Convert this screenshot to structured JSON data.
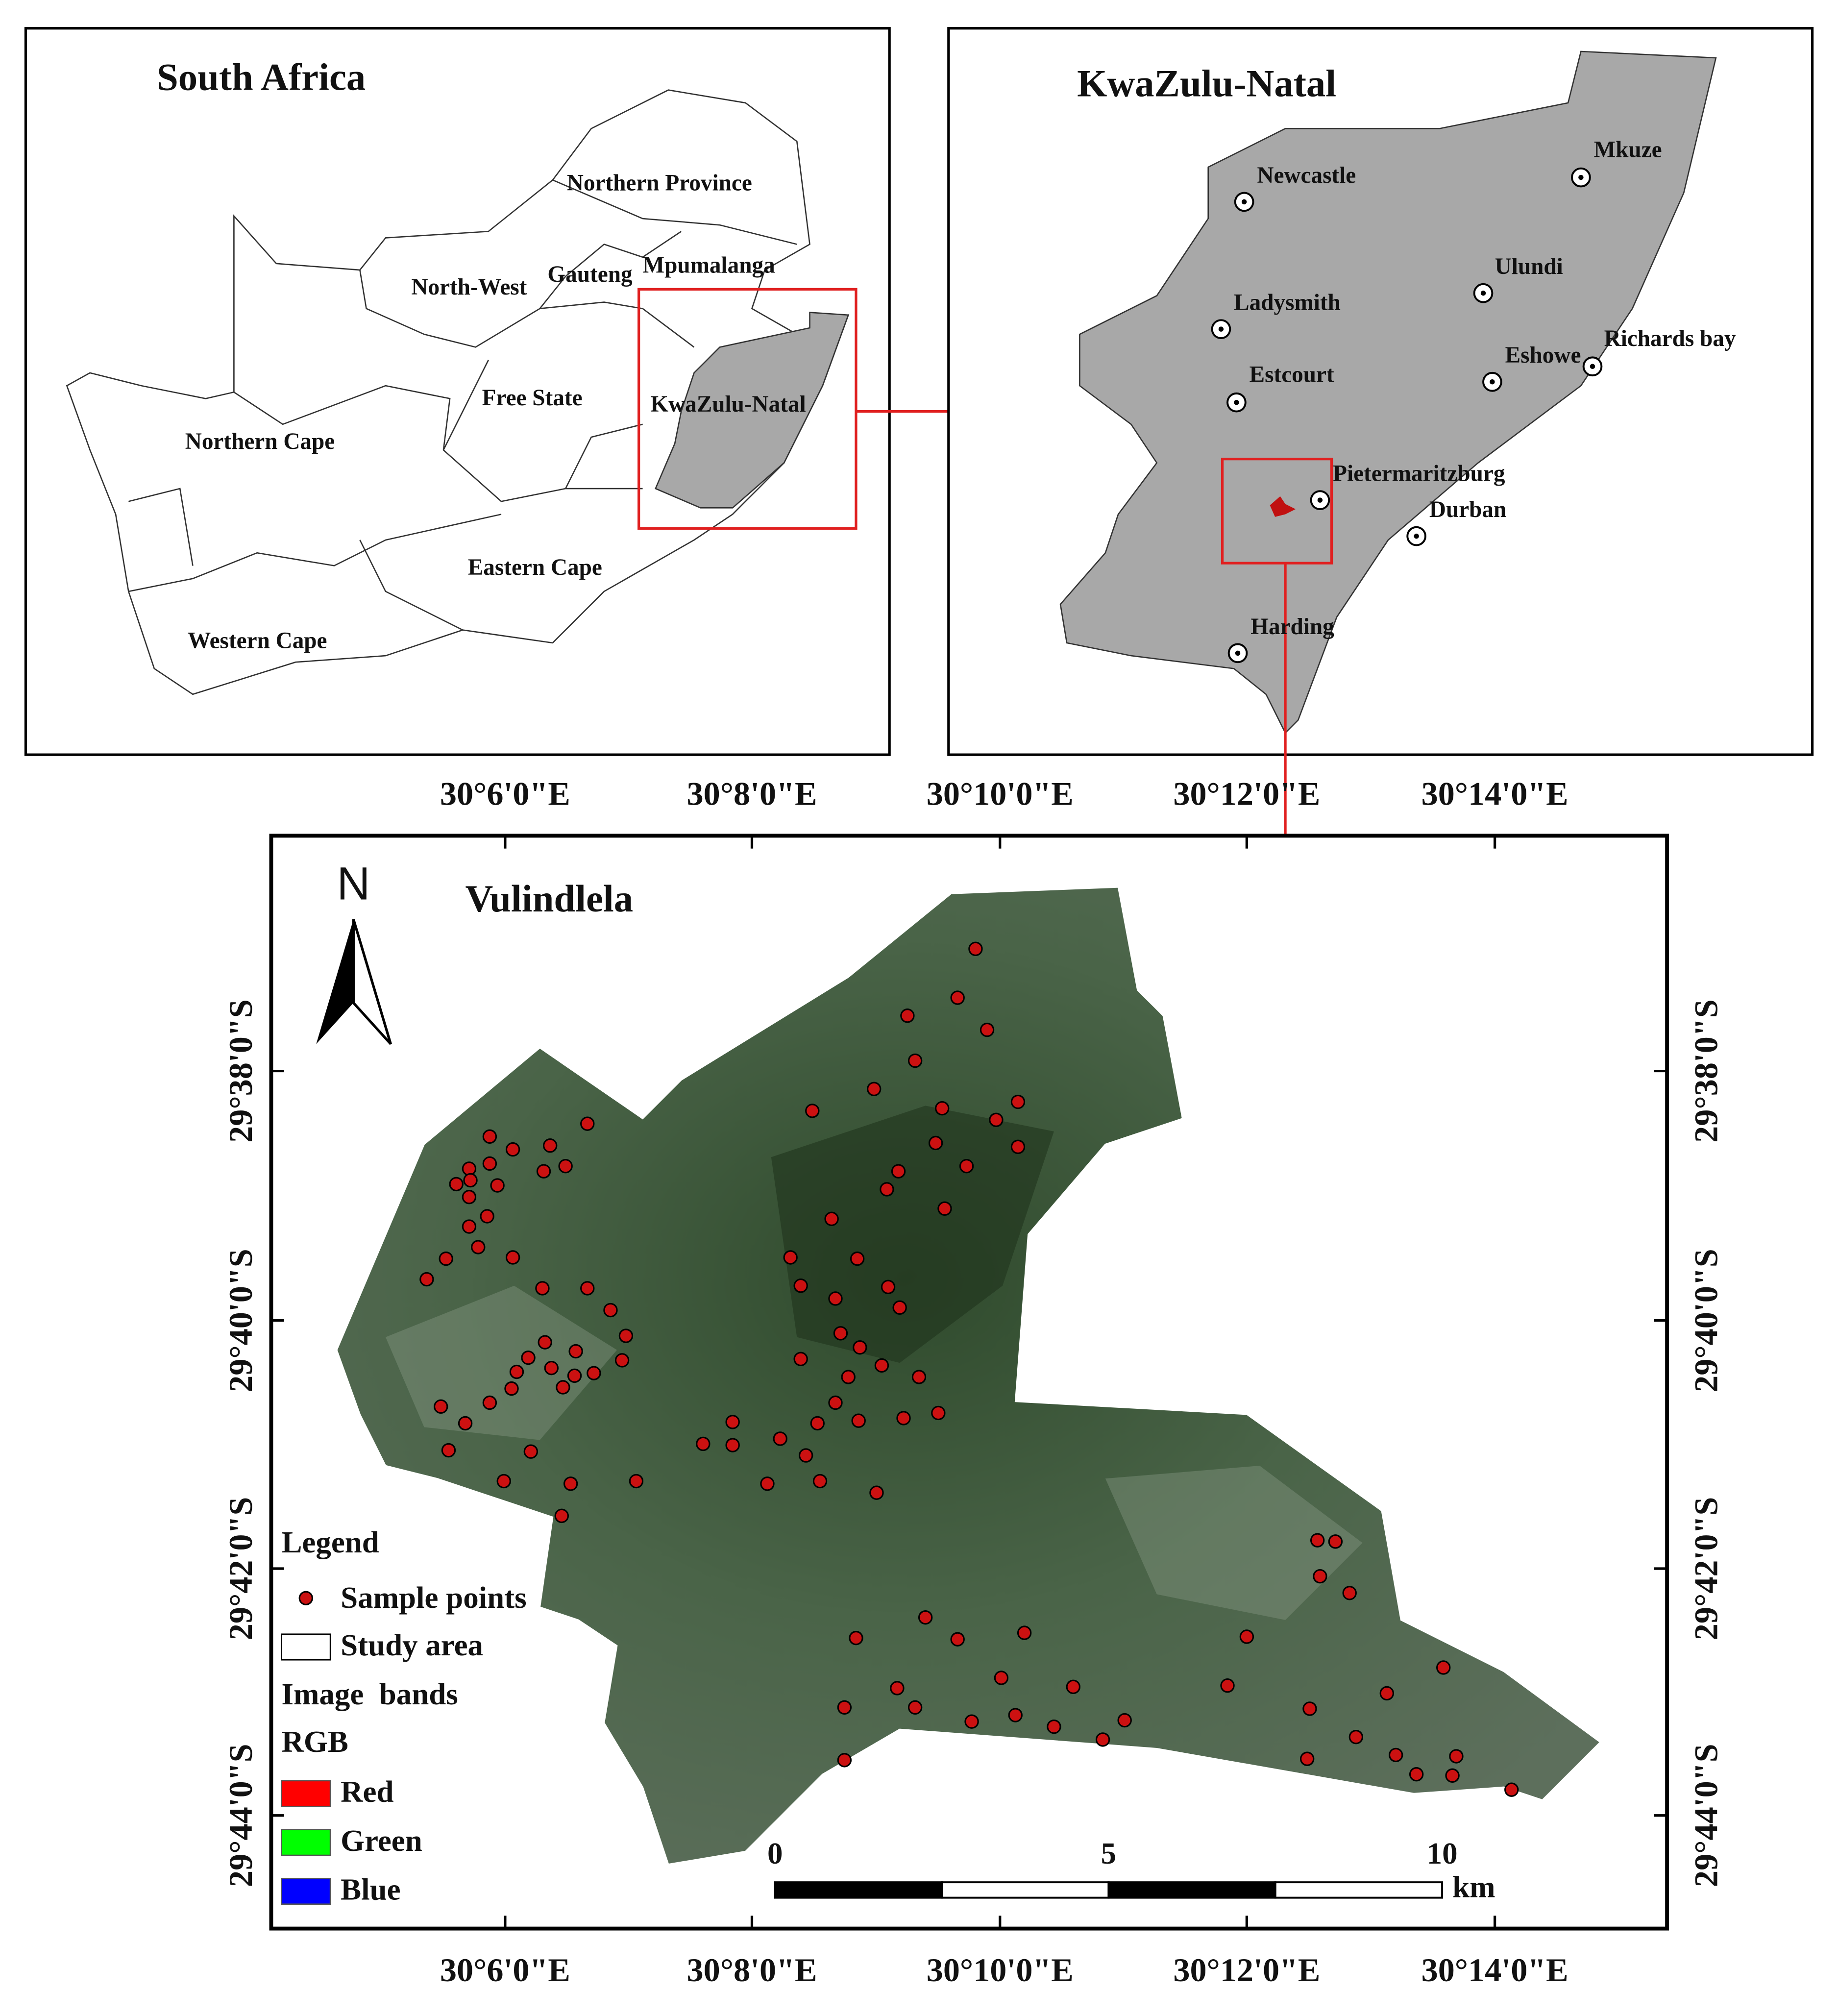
{
  "panels": {
    "south_africa": {
      "title": "South Africa",
      "regions": [
        "Northern Province",
        "North-West",
        "Gauteng",
        "Mpumalanga",
        "Free State",
        "KwaZulu-Natal",
        "Northern Cape",
        "Eastern Cape",
        "Western Cape"
      ]
    },
    "kwazulu_natal": {
      "title": "KwaZulu-Natal",
      "towns": [
        "Mkuze",
        "Newcastle",
        "Ulundi",
        "Ladysmith",
        "Richards bay",
        "Eshowe",
        "Estcourt",
        "Pietermaritzburg",
        "Durban",
        "Harding"
      ]
    },
    "vulindlela": {
      "title": "Vulindlela",
      "north": "N",
      "x_labels": [
        "30°6'0\"E",
        "30°8'0\"E",
        "30°10'0\"E",
        "30°12'0\"E",
        "30°14'0\"E"
      ],
      "y_labels": [
        "29°38'0\"S",
        "29°40'0\"S",
        "29°42'0\"S",
        "29°44'0\"S"
      ],
      "scale": {
        "ticks": [
          0,
          5,
          10
        ],
        "unit": "km"
      },
      "legend": {
        "title": "Legend",
        "items": [
          "Sample points",
          "Study area"
        ],
        "bands_title": "Image  bands",
        "bands_subtitle": "RGB",
        "bands": [
          {
            "name": "Red",
            "color": "#ff0000"
          },
          {
            "name": "Green",
            "color": "#00ff00"
          },
          {
            "name": "Blue",
            "color": "#0000ff"
          }
        ]
      }
    }
  }
}
